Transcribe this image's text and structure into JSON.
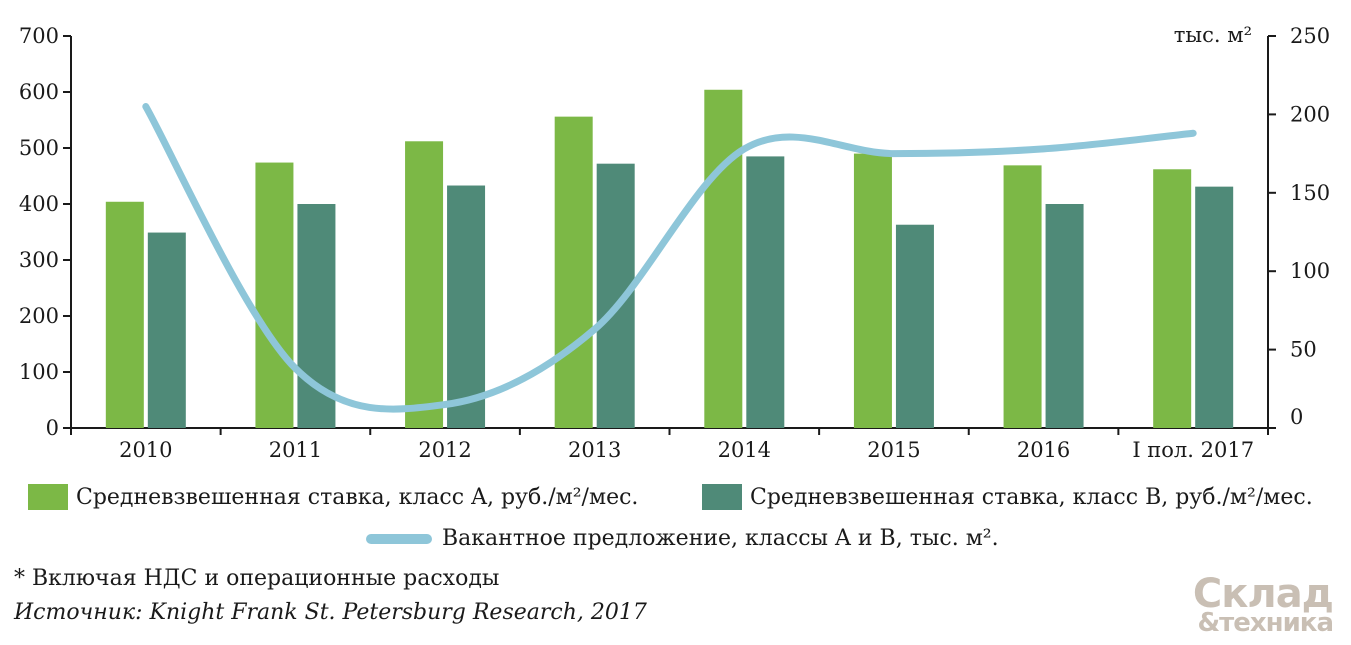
{
  "colors": {
    "classA": "#7cb846",
    "classB": "#4f8a78",
    "vacancy": "#8ec6d9",
    "axis": "#1a1a1a",
    "logo": "#c9bfb4"
  },
  "chart_data": {
    "type": "bar",
    "categories": [
      "2010",
      "2011",
      "2012",
      "2013",
      "2014",
      "2015",
      "2016",
      "I пол. 2017"
    ],
    "series": [
      {
        "name": "Средневзвешенная ставка, класс A, руб./м²/мес.",
        "type": "bar",
        "axis": "left",
        "values": [
          404,
          474,
          512,
          556,
          604,
          490,
          469,
          462
        ]
      },
      {
        "name": "Средневзвешенная ставка, класс B, руб./м²/мес.",
        "type": "bar",
        "axis": "left",
        "values": [
          349,
          400,
          433,
          472,
          485,
          363,
          400,
          431
        ]
      },
      {
        "name": "Вакантное предложение, классы A и B, тыс. м².",
        "type": "line",
        "axis": "right",
        "values": [
          205,
          38,
          15,
          63,
          178,
          175,
          178,
          188
        ]
      }
    ],
    "yleft": {
      "ylim": [
        0,
        700
      ],
      "ticks": [
        "0",
        "100",
        "200",
        "300",
        "400",
        "500",
        "600",
        "700"
      ]
    },
    "yright": {
      "ylim": [
        0,
        250
      ],
      "ticks": [
        "0",
        "50",
        "100",
        "150",
        "200",
        "250"
      ],
      "unit": "тыс. м²"
    },
    "grid": false,
    "legend_position": "bottom"
  },
  "legend": {
    "a_label": "Средневзвешенная ставка, класс A, руб./м²/мес.",
    "b_label": "Средневзвешенная ставка, класс B, руб./м²/мес.",
    "v_label": "Вакантное предложение, классы A и B, тыс. м²."
  },
  "notes": {
    "footnote": "* Включая НДС и операционные расходы",
    "source": "Источник: Knight Frank St. Petersburg Research, 2017"
  },
  "logo": {
    "line1": "Склад",
    "line2": "&техника"
  }
}
